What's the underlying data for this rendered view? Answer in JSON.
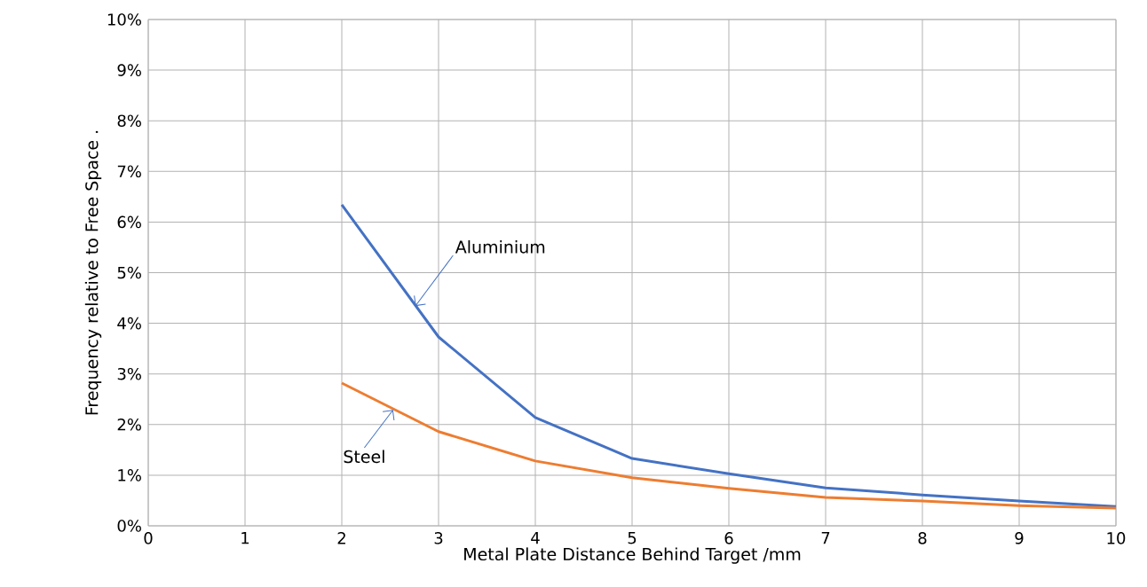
{
  "chart_data": {
    "type": "line",
    "xlabel": "Metal Plate Distance Behind Target /mm",
    "ylabel": "Frequency relative to Free Space .",
    "x": [
      2,
      3,
      4,
      5,
      6,
      7,
      8,
      9,
      10
    ],
    "series": [
      {
        "color": "#4472c4",
        "values": [
          6.34,
          3.73,
          2.14,
          1.33,
          1.03,
          0.75,
          0.61,
          0.49,
          0.38
        ]
      },
      {
        "color": "#ed7d31",
        "values": [
          2.82,
          1.86,
          1.28,
          0.95,
          0.74,
          0.56,
          0.49,
          0.4,
          0.35
        ]
      }
    ],
    "xlim": [
      0,
      10
    ],
    "xticks": [
      0,
      1,
      2,
      3,
      4,
      5,
      6,
      7,
      8,
      9,
      10
    ],
    "ylim": [
      0,
      10
    ],
    "yticks": [
      {
        "value": 0,
        "label": "0%"
      },
      {
        "value": 1,
        "label": "1%"
      },
      {
        "value": 2,
        "label": "2%"
      },
      {
        "value": 3,
        "label": "3%"
      },
      {
        "value": 4,
        "label": "4%"
      },
      {
        "value": 5,
        "label": "5%"
      },
      {
        "value": 6,
        "label": "6%"
      },
      {
        "value": 7,
        "label": "7%"
      },
      {
        "value": 8,
        "label": "8%"
      },
      {
        "value": 9,
        "label": "9%"
      },
      {
        "value": 10,
        "label": "10%"
      }
    ],
    "annotations": [
      {
        "text": "Aluminium",
        "x": 2.76,
        "y": 4.34
      },
      {
        "text": "Steel",
        "x": 2.53,
        "y": 2.29
      }
    ],
    "grid": true,
    "marker": "none",
    "line_style": "solid"
  }
}
